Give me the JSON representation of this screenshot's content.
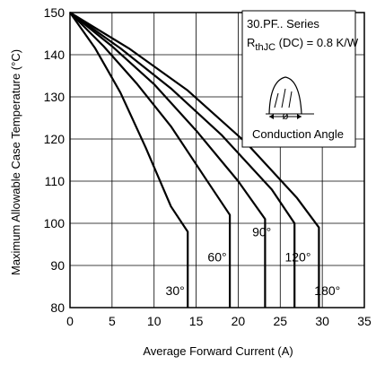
{
  "chart_data": {
    "type": "line",
    "title": "",
    "xlabel": "Average Forward Current (A)",
    "ylabel": "Maximum Allowable Case Temperature (°C)",
    "xlim": [
      0,
      35
    ],
    "ylim": [
      80,
      150
    ],
    "xticks": [
      0,
      5,
      10,
      15,
      20,
      25,
      30,
      35
    ],
    "yticks": [
      80,
      90,
      100,
      110,
      120,
      130,
      140,
      150
    ],
    "grid": true,
    "annotation": {
      "series_line": "30.PF.. Series",
      "rth_main": "R",
      "rth_sub": "thJC",
      "rth_tail": " (DC) = 0.8 K/W",
      "inset_label": "Conduction Angle",
      "inset_symbol": "ø"
    },
    "series": [
      {
        "name": "30°",
        "x": [
          0,
          3,
          6,
          9,
          12,
          14,
          14
        ],
        "y": [
          150,
          141.5,
          131,
          118,
          104,
          98,
          80
        ]
      },
      {
        "name": "60°",
        "x": [
          0,
          4,
          8,
          12,
          16,
          19,
          19
        ],
        "y": [
          150,
          142,
          133,
          123,
          111,
          102,
          80
        ]
      },
      {
        "name": "90°",
        "x": [
          0,
          5,
          10,
          15,
          20,
          23.2,
          23.2
        ],
        "y": [
          150,
          142,
          133,
          122,
          110,
          101,
          80
        ]
      },
      {
        "name": "120°",
        "x": [
          0,
          6,
          12,
          18,
          24,
          26.7,
          26.7
        ],
        "y": [
          150,
          141.5,
          132,
          121,
          108,
          100,
          80
        ]
      },
      {
        "name": "180°",
        "x": [
          0,
          7,
          14,
          21,
          27,
          29.6,
          29.6
        ],
        "y": [
          150,
          141.5,
          131.5,
          119,
          106,
          99,
          80
        ]
      }
    ],
    "curve_labels": [
      {
        "text": "30°",
        "x": 12.5,
        "y": 84
      },
      {
        "text": "60°",
        "x": 17.5,
        "y": 92
      },
      {
        "text": "90°",
        "x": 22.8,
        "y": 98
      },
      {
        "text": "120°",
        "x": 27.1,
        "y": 92
      },
      {
        "text": "180°",
        "x": 30.6,
        "y": 84
      }
    ]
  }
}
